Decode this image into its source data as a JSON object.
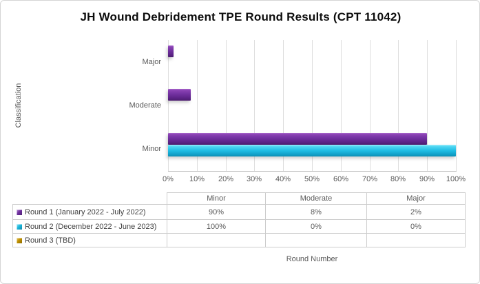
{
  "title": "JH Wound Debridement TPE Round Results (CPT 11042)",
  "axes": {
    "y_title": "Classification",
    "x_title": "Round Number",
    "x_ticks": [
      "0%",
      "10%",
      "20%",
      "30%",
      "40%",
      "50%",
      "60%",
      "70%",
      "80%",
      "90%",
      "100%"
    ],
    "categories_top_to_bottom": [
      "Major",
      "Moderate",
      "Minor"
    ]
  },
  "chart_data": {
    "type": "bar",
    "orientation": "horizontal",
    "title": "JH Wound Debridement TPE Round Results (CPT 11042)",
    "ylabel": "Classification",
    "xlabel": "Round Number",
    "xlim": [
      0,
      100
    ],
    "x_tick_step_percent": 10,
    "grid": "vertical",
    "legend_position": "bottom-table",
    "categories": [
      "Major",
      "Moderate",
      "Minor"
    ],
    "series": [
      {
        "name": "Round 1 (January 2022 - July 2022)",
        "color": "#7030A0",
        "values_percent": [
          2,
          8,
          90
        ]
      },
      {
        "name": "Round 2 (December 2022 - June 2023)",
        "color": "#1CB8DD",
        "values_percent": [
          0,
          0,
          100
        ]
      },
      {
        "name": "Round 3 (TBD)",
        "color": "#BF9000",
        "values_percent": [
          null,
          null,
          null
        ]
      }
    ]
  },
  "table": {
    "column_headers": [
      "Minor",
      "Moderate",
      "Major"
    ],
    "rows": [
      {
        "label": "Round 1 (January 2022 - July 2022)",
        "swatch_color": "#7030A0",
        "cells": [
          "90%",
          "8%",
          "2%"
        ]
      },
      {
        "label": "Round 2 (December 2022 - June 2023)",
        "swatch_color": "#1CB8DD",
        "cells": [
          "100%",
          "0%",
          "0%"
        ]
      },
      {
        "label": "Round 3 (TBD)",
        "swatch_color": "#BF9000",
        "cells": [
          "",
          "",
          ""
        ]
      }
    ]
  },
  "colors": {
    "round1_purple": "#7030A0",
    "round2_cyan": "#1CB8DD",
    "round3_gold": "#BF9000",
    "gridline": "#DEDEDE",
    "axis_line": "#C0C0C0",
    "text_gray": "#595959",
    "table_border": "#CCCCCC",
    "title_text": "#0D0D0D",
    "background": "#FFFFFF"
  }
}
